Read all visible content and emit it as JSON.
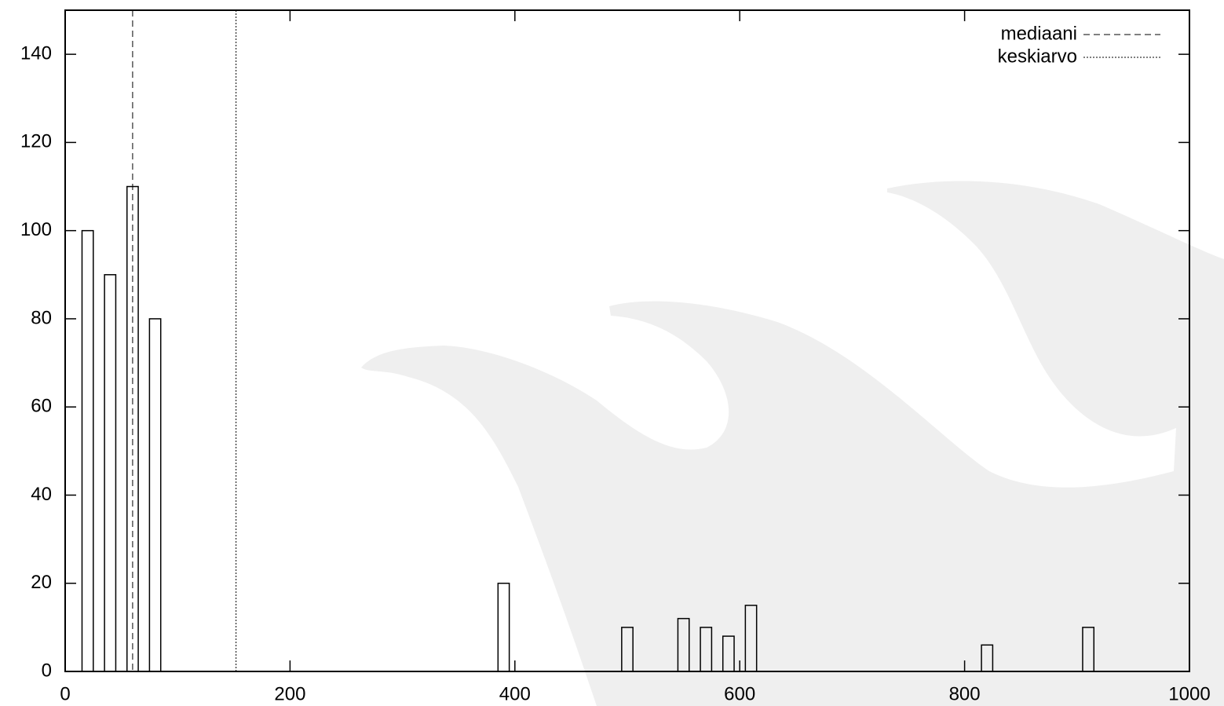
{
  "chart_data": {
    "type": "bar",
    "x": [
      20,
      40,
      60,
      80,
      390,
      500,
      550,
      570,
      590,
      610,
      820,
      910
    ],
    "values": [
      100,
      90,
      110,
      80,
      20,
      10,
      12,
      10,
      8,
      15,
      6,
      10
    ],
    "color": "#000000",
    "xlim": [
      0,
      1000
    ],
    "xticks": [
      0,
      200,
      400,
      600,
      800,
      1000
    ],
    "ylim": [
      0,
      150
    ],
    "yticks": [
      0,
      20,
      40,
      60,
      80,
      100,
      120,
      140
    ],
    "grid": false,
    "legend": "top-right",
    "lines": [
      {
        "name": "mediaani",
        "x": 60,
        "style": "dashed"
      },
      {
        "name": "keskiarvo",
        "x": 152,
        "style": "dotted"
      }
    ]
  }
}
